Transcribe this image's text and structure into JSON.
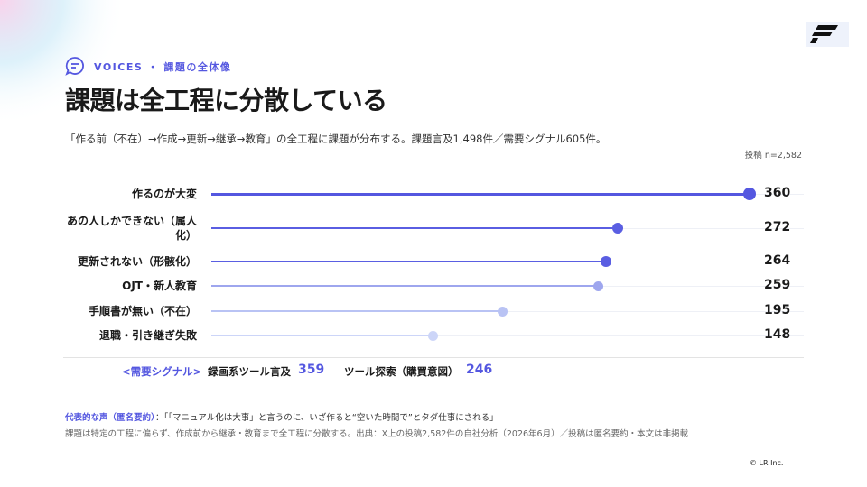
{
  "header": {
    "eyebrow": "VOICES ・ 課題の全体像",
    "title": "課題は全工程に分散している",
    "subtitle": "「作る前（不在）→作成→更新→継承→教育」の全工程に課題が分布する。課題言及1,498件／需要シグナル605件。",
    "note": "投稿 n=2,582"
  },
  "chart_data": {
    "type": "lollipop",
    "categories": [
      "作るのが大変",
      "あの人しかできない（属人化）",
      "更新されない（形骸化）",
      "OJT・新人教育",
      "手順書が無い（不在）",
      "退職・引き継ぎ失敗"
    ],
    "values": [
      360,
      272,
      264,
      259,
      195,
      148
    ],
    "colors": [
      "#5457e0",
      "#5a5ee2",
      "#5a5ee2",
      "#9ea6ee",
      "#b9c3f4",
      "#ccd5f8"
    ],
    "xlim": [
      0,
      360
    ]
  },
  "signals": {
    "label": "<需要シグナル>",
    "items": [
      {
        "name": "録画系ツール言及",
        "value": 359
      },
      {
        "name": "ツール探索（購買意図）",
        "value": 246
      }
    ]
  },
  "footer": {
    "quote_label": "代表的な声（匿名要約）",
    "quote": "：「「マニュアル化は大事」と言うのに、いざ作ると“空いた時間で”とタダ仕事にされる」",
    "source": "課題は特定の工程に偏らず、作成前から継承・教育まで全工程に分散する。出典：X上の投稿2,582件の自社分析（2026年6月）／投稿は匿名要約・本文は非掲載",
    "copyright": "© LR Inc."
  }
}
